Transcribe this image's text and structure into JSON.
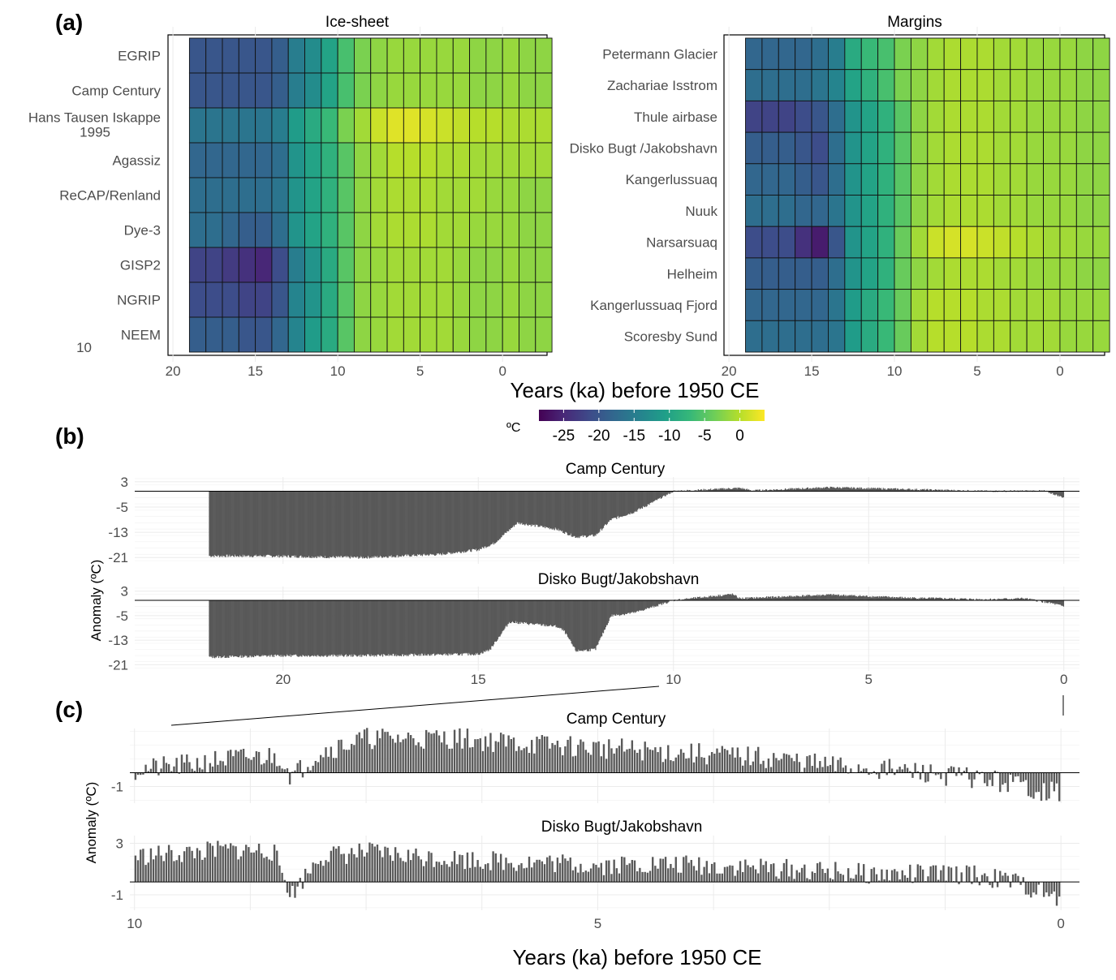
{
  "panel_labels": [
    "(a)",
    "(b)",
    "(c)"
  ],
  "colors": {
    "viridis": [
      "#440154",
      "#482878",
      "#3e4a89",
      "#31688e",
      "#26828e",
      "#1f9e89",
      "#35b779",
      "#6ece58",
      "#b5de2b",
      "#fde725"
    ],
    "bar_fill": "#595959",
    "zero_line": "#000000"
  },
  "chart_data": [
    {
      "id": "a-ice",
      "type": "heatmap",
      "title": "Ice-sheet",
      "row_labels": [
        "EGRIP",
        "Camp Century",
        "Hans Tausen Iskappe",
        "Agassiz",
        "ReCAP/Renland",
        "Dye-3",
        "GISP2",
        "NGRIP",
        "NEEM"
      ],
      "row_label_line2": {
        "Hans Tausen Iskappe": "1995"
      },
      "stray_label": "10",
      "x_ticks": [
        20,
        15,
        10,
        5,
        0
      ],
      "xlim": [
        20.3,
        -2.7
      ],
      "col_centers_ka": [
        18.5,
        17.5,
        16.5,
        15.5,
        14.5,
        13.5,
        12.5,
        11.5,
        10.5,
        9.5,
        8.5,
        7.5,
        6.5,
        5.5,
        4.5,
        3.5,
        2.5,
        1.5,
        0.5,
        -0.5,
        -1.5,
        -2.5
      ],
      "values": [
        [
          -20,
          -20,
          -20,
          -20,
          -20,
          -19,
          -15,
          -13,
          -10,
          -6,
          -3,
          -2,
          -1.5,
          -1.5,
          -1.5,
          -1.5,
          -1.5,
          -2,
          -2,
          -1.5,
          -2,
          -2
        ],
        [
          -20,
          -20,
          -20,
          -20,
          -20,
          -19,
          -15,
          -13,
          -10,
          -6,
          -3,
          -2,
          -1.5,
          -1.5,
          -1.5,
          -1.5,
          -1.5,
          -2,
          -2,
          -1.5,
          -2,
          -2
        ],
        [
          -16,
          -16,
          -16,
          -16,
          -16,
          -15,
          -11,
          -9,
          -7,
          -3,
          -1,
          1,
          2,
          2,
          1.5,
          1,
          0.5,
          0,
          0,
          -0.5,
          -0.5,
          -0.5
        ],
        [
          -18,
          -18,
          -18,
          -18,
          -18,
          -17,
          -12,
          -10,
          -8,
          -5,
          -2,
          -1,
          0,
          0,
          0,
          -0.5,
          -0.5,
          -1,
          -1,
          -1,
          -1,
          -1
        ],
        [
          -17,
          -17,
          -17,
          -17,
          -17,
          -16,
          -12,
          -10,
          -8,
          -5,
          -2,
          -1,
          -0.5,
          -0.5,
          -0.5,
          -1,
          -1,
          -1,
          -1.5,
          -1.5,
          -2,
          -2
        ],
        [
          -17,
          -17,
          -18,
          -19,
          -19,
          -17,
          -12,
          -10,
          -8,
          -5,
          -2,
          -1,
          -0.5,
          -0.5,
          -0.5,
          -1,
          -1,
          -1.5,
          -1.5,
          -1.5,
          -2,
          -2
        ],
        [
          -22,
          -22,
          -23,
          -24,
          -25,
          -21,
          -15,
          -12,
          -9,
          -5,
          -2,
          -1.5,
          -1,
          -1,
          -1,
          -1,
          -1.5,
          -2,
          -2,
          -1.5,
          -2,
          -2
        ],
        [
          -21,
          -21,
          -21,
          -22,
          -22,
          -20,
          -14,
          -12,
          -9,
          -5,
          -2,
          -1.5,
          -1,
          -1,
          -1,
          -1,
          -1.5,
          -2,
          -2,
          -1.5,
          -2,
          -2
        ],
        [
          -19,
          -19,
          -19,
          -20,
          -20,
          -18,
          -14,
          -11,
          -9,
          -5,
          -2,
          -1.5,
          -1,
          -1,
          -1,
          -1,
          -1.5,
          -2,
          -2,
          -1.5,
          -2,
          -2
        ]
      ]
    },
    {
      "id": "a-margins",
      "type": "heatmap",
      "title": "Margins",
      "row_labels": [
        "Petermann Glacier",
        "Zachariae Isstrom",
        "Thule airbase",
        "Disko Bugt /Jakobshavn",
        "Kangerlussuaq",
        "Nuuk",
        "Narsarsuaq",
        "Helheim",
        "Kangerlussuaq Fjord",
        "Scoresby Sund"
      ],
      "x_ticks": [
        20,
        15,
        10,
        5,
        0
      ],
      "xlim": [
        20.3,
        -2.7
      ],
      "col_centers_ka": [
        18.5,
        17.5,
        16.5,
        15.5,
        14.5,
        13.5,
        12.5,
        11.5,
        10.5,
        9.5,
        8.5,
        7.5,
        6.5,
        5.5,
        4.5,
        3.5,
        2.5,
        1.5,
        0.5,
        -0.5,
        -1.5,
        -2.5
      ],
      "values": [
        [
          -18,
          -18,
          -18,
          -18,
          -17,
          -15,
          -9,
          -7,
          -6,
          -3,
          -2,
          -1,
          -0.5,
          -0.5,
          -0.5,
          -1,
          -1,
          -1.5,
          -1.5,
          -1.5,
          -2,
          -2
        ],
        [
          -17,
          -17,
          -17,
          -17,
          -16,
          -14,
          -10,
          -8,
          -6,
          -3,
          -2,
          -1,
          -0.5,
          -0.5,
          -0.5,
          -1,
          -1,
          -1.5,
          -1.5,
          -1.5,
          -2,
          -2
        ],
        [
          -22,
          -22,
          -22,
          -21,
          -20,
          -17,
          -12,
          -10,
          -8,
          -5,
          -2,
          -1,
          -0.5,
          -0.5,
          -0.5,
          -1,
          -1,
          -1.5,
          -1.5,
          -1.5,
          -2,
          -2
        ],
        [
          -19,
          -19,
          -19,
          -20,
          -21,
          -17,
          -12,
          -10,
          -8,
          -5,
          -2,
          -1,
          -0.5,
          -0.5,
          -0.5,
          -1,
          -1,
          -1.5,
          -1.5,
          -1.5,
          -2,
          -2
        ],
        [
          -18,
          -18,
          -18,
          -19,
          -20,
          -17,
          -12,
          -10,
          -8,
          -5,
          -2,
          -1,
          -0.5,
          -0.5,
          -0.5,
          -1,
          -1,
          -1.5,
          -1.5,
          -1.5,
          -2,
          -2
        ],
        [
          -17,
          -17,
          -17,
          -18,
          -18,
          -16,
          -12,
          -10,
          -8,
          -5,
          -2,
          -1,
          -0.5,
          -0.5,
          -0.5,
          -1,
          -1,
          -1.5,
          -1.5,
          -1.5,
          -2,
          -2
        ],
        [
          -21,
          -21,
          -21,
          -24,
          -26,
          -20,
          -12,
          -10,
          -8,
          -4,
          -1,
          1,
          1.5,
          1.5,
          1,
          0.5,
          0,
          -0.5,
          -1,
          -1,
          -1.5,
          -1.5
        ],
        [
          -19,
          -19,
          -19,
          -19,
          -19,
          -17,
          -12,
          -10,
          -8,
          -4,
          -2,
          -1,
          -0.5,
          -0.5,
          -0.5,
          -1,
          -1,
          -1.5,
          -1.5,
          -1.5,
          -2,
          -2
        ],
        [
          -18,
          -18,
          -18,
          -18,
          -18,
          -16,
          -11,
          -9,
          -7,
          -4,
          -1,
          0,
          0,
          0,
          -0.5,
          -0.5,
          -1,
          -1,
          -1,
          -1.5,
          -1.5,
          -1.5
        ],
        [
          -17,
          -17,
          -17,
          -17,
          -17,
          -16,
          -11,
          -9,
          -7,
          -4,
          -1,
          0,
          0,
          0,
          -0.5,
          -0.5,
          -1,
          -1,
          -1,
          -1.5,
          -1.5,
          -1.5
        ]
      ]
    },
    {
      "id": "b-camp",
      "type": "bar",
      "title": "Camp Century",
      "y_ticks": [
        3,
        -5,
        -13,
        -21
      ],
      "ylim": [
        -23,
        4.5
      ],
      "xlim": [
        23.8,
        -0.4
      ],
      "anchors_ka": [
        21.9,
        20.5,
        18.0,
        16.0,
        15.0,
        14.6,
        14.0,
        13.0,
        12.5,
        12.0,
        11.6,
        11.0,
        10.0,
        8.3,
        8.0,
        6.0,
        4.0,
        2.0,
        0.5,
        0.0
      ],
      "anchors_value": [
        -20.5,
        -20.5,
        -21.0,
        -20.0,
        -18.5,
        -16.5,
        -10.0,
        -12.0,
        -14.5,
        -14.0,
        -9.0,
        -6.5,
        0.0,
        1.0,
        0.2,
        1.2,
        0.6,
        0.0,
        0.1,
        -2.0
      ]
    },
    {
      "id": "b-disko",
      "type": "bar",
      "title": "Disko Bugt/Jakobshavn",
      "y_ticks": [
        3,
        -5,
        -13,
        -21
      ],
      "ylim": [
        -23,
        4.5
      ],
      "xlim": [
        23.8,
        -0.4
      ],
      "x_ticks": [
        20,
        15,
        10,
        5,
        0
      ],
      "anchors_ka": [
        21.9,
        20.0,
        18.0,
        15.0,
        14.7,
        14.2,
        13.0,
        12.8,
        12.5,
        12.0,
        11.6,
        11.0,
        10.0,
        8.5,
        8.3,
        6.0,
        4.0,
        2.0,
        1.0,
        0.3,
        0.0
      ],
      "anchors_value": [
        -18.5,
        -18.0,
        -18.0,
        -17.5,
        -16.0,
        -7.0,
        -8.5,
        -10.0,
        -16.5,
        -16.0,
        -5.0,
        -4.0,
        0.0,
        2.0,
        0.6,
        1.8,
        0.8,
        0.3,
        0.6,
        -1.0,
        -2.0
      ]
    },
    {
      "id": "c-camp",
      "type": "bar",
      "title": "Camp Century",
      "y_ticks": [
        -1
      ],
      "ylim": [
        -2.2,
        3.2
      ],
      "xlim": [
        10.05,
        -0.2
      ],
      "anchors_ka": [
        10.0,
        9.5,
        9.0,
        8.5,
        8.4,
        8.3,
        8.0,
        7.5,
        7.0,
        6.5,
        6.0,
        5.5,
        5.0,
        4.5,
        4.0,
        3.5,
        3.0,
        2.5,
        2.0,
        1.5,
        1.0,
        0.5,
        0.2,
        0.0
      ],
      "anchors_value": [
        0.2,
        0.5,
        1.0,
        1.2,
        1.0,
        -0.3,
        1.5,
        2.5,
        2.5,
        2.5,
        2.2,
        2.0,
        1.8,
        1.6,
        1.4,
        1.2,
        1.0,
        0.5,
        0.3,
        0.0,
        -0.3,
        -0.8,
        -1.3,
        -1.5
      ]
    },
    {
      "id": "c-disko",
      "type": "bar",
      "title": "Disko Bugt/Jakobshavn",
      "y_ticks": [
        3,
        -1
      ],
      "ylim": [
        -2.2,
        3.6
      ],
      "xlim": [
        10.05,
        -0.2
      ],
      "x_ticks": [
        10,
        5,
        0
      ],
      "anchors_ka": [
        10.0,
        9.5,
        9.0,
        8.5,
        8.3,
        8.0,
        7.5,
        7.0,
        6.5,
        6.0,
        5.5,
        5.0,
        4.5,
        4.0,
        3.5,
        3.0,
        2.5,
        2.0,
        1.5,
        1.0,
        0.5,
        0.2,
        0.0
      ],
      "anchors_value": [
        2.0,
        2.2,
        2.5,
        2.4,
        -1.0,
        2.0,
        2.3,
        2.0,
        1.8,
        1.6,
        1.5,
        1.3,
        1.4,
        1.3,
        1.2,
        1.0,
        0.8,
        0.6,
        0.6,
        0.6,
        0.0,
        -0.8,
        -1.5
      ]
    }
  ],
  "shared_x_label": "Years (ka) before 1950 CE",
  "colorbar": {
    "unit": "ºC",
    "ticks": [
      -25,
      -20,
      -15,
      -10,
      -5,
      0
    ],
    "range": [
      -28.5,
      3.5
    ]
  },
  "panel_b_y_label": "Anomaly (ºC)",
  "panel_c_y_label": "Anomaly (ºC)"
}
